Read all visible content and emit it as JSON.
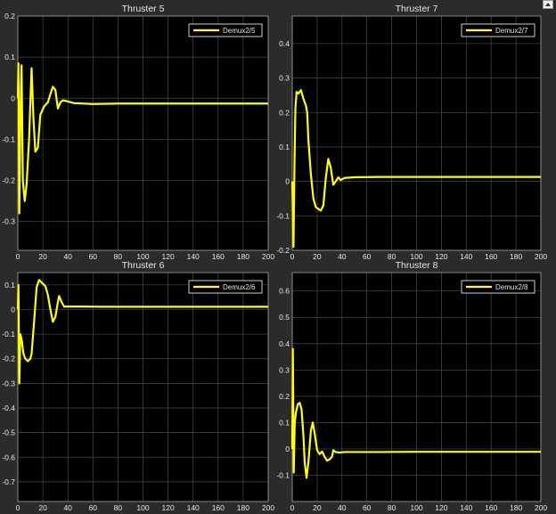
{
  "window": {
    "undock_icon": "undock-arrow-icon"
  },
  "colors": {
    "background": "#2b2b2b",
    "axes_background": "#000000",
    "grid": "#4a4a4a",
    "axis_line": "#a0a0a0",
    "text": "#e6e6e6",
    "series": "#ffff00",
    "legend_bg": "#000000",
    "legend_border": "#ffffff"
  },
  "chart_data": [
    {
      "type": "line",
      "title": "Thruster 5",
      "xlabel": "",
      "ylabel": "",
      "xlim": [
        0,
        200
      ],
      "ylim": [
        -0.37,
        0.2
      ],
      "xticks": [
        0,
        20,
        40,
        60,
        80,
        100,
        120,
        140,
        160,
        180,
        200
      ],
      "yticks": [
        -0.3,
        -0.2,
        -0.1,
        0,
        0.1,
        0.2
      ],
      "grid": true,
      "legend": "top-right",
      "series": [
        {
          "name": "Demux2/5",
          "color": "#ffff00",
          "points": [
            [
              0,
              0.0
            ],
            [
              0.5,
              0.085
            ],
            [
              1.2,
              -0.28
            ],
            [
              2,
              -0.05
            ],
            [
              3,
              0.08
            ],
            [
              4,
              -0.2
            ],
            [
              5.5,
              -0.25
            ],
            [
              7,
              -0.21
            ],
            [
              9,
              -0.1
            ],
            [
              11,
              0.073
            ],
            [
              12.5,
              -0.05
            ],
            [
              14,
              -0.13
            ],
            [
              16,
              -0.12
            ],
            [
              18,
              -0.04
            ],
            [
              21,
              -0.02
            ],
            [
              24,
              -0.01
            ],
            [
              26,
              0.01
            ],
            [
              28,
              0.028
            ],
            [
              30,
              0.02
            ],
            [
              32,
              -0.025
            ],
            [
              34,
              -0.01
            ],
            [
              36,
              -0.005
            ],
            [
              39,
              -0.007
            ],
            [
              45,
              -0.012
            ],
            [
              60,
              -0.014
            ],
            [
              80,
              -0.013
            ],
            [
              120,
              -0.013
            ],
            [
              160,
              -0.013
            ],
            [
              200,
              -0.013
            ]
          ]
        }
      ]
    },
    {
      "type": "line",
      "title": "Thruster 7",
      "xlabel": "",
      "ylabel": "",
      "xlim": [
        0,
        200
      ],
      "ylim": [
        -0.2,
        0.48
      ],
      "xticks": [
        0,
        20,
        40,
        60,
        80,
        100,
        120,
        140,
        160,
        180,
        200
      ],
      "yticks": [
        -0.2,
        -0.1,
        0,
        0.1,
        0.2,
        0.3,
        0.4
      ],
      "grid": true,
      "legend": "top-right",
      "series": [
        {
          "name": "Demux2/7",
          "color": "#ffff00",
          "points": [
            [
              0,
              0.0
            ],
            [
              0.5,
              -0.1
            ],
            [
              1,
              -0.19
            ],
            [
              1.8,
              0.05
            ],
            [
              2.5,
              0.21
            ],
            [
              3.5,
              0.26
            ],
            [
              5,
              0.255
            ],
            [
              7,
              0.265
            ],
            [
              9,
              0.24
            ],
            [
              11,
              0.22
            ],
            [
              12,
              0.2
            ],
            [
              13,
              0.12
            ],
            [
              15,
              0.02
            ],
            [
              17,
              -0.05
            ],
            [
              19,
              -0.075
            ],
            [
              21,
              -0.08
            ],
            [
              23,
              -0.085
            ],
            [
              25,
              -0.07
            ],
            [
              27,
              0.01
            ],
            [
              29,
              0.065
            ],
            [
              31,
              0.04
            ],
            [
              33,
              -0.01
            ],
            [
              35,
              0.0
            ],
            [
              37,
              0.012
            ],
            [
              39,
              0.004
            ],
            [
              42,
              0.01
            ],
            [
              50,
              0.012
            ],
            [
              70,
              0.013
            ],
            [
              100,
              0.013
            ],
            [
              150,
              0.013
            ],
            [
              200,
              0.013
            ]
          ]
        }
      ]
    },
    {
      "type": "line",
      "title": "Thruster 6",
      "xlabel": "",
      "ylabel": "",
      "xlim": [
        0,
        200
      ],
      "ylim": [
        -0.78,
        0.15
      ],
      "xticks": [
        0,
        20,
        40,
        60,
        80,
        100,
        120,
        140,
        160,
        180,
        200
      ],
      "yticks": [
        -0.7,
        -0.6,
        -0.5,
        -0.4,
        -0.3,
        -0.2,
        -0.1,
        0,
        0.1
      ],
      "grid": true,
      "legend": "top-right",
      "series": [
        {
          "name": "Demux2/6",
          "color": "#ffff00",
          "points": [
            [
              0,
              0.0
            ],
            [
              0.5,
              0.1
            ],
            [
              1.2,
              -0.3
            ],
            [
              2,
              -0.1
            ],
            [
              3,
              -0.12
            ],
            [
              4.5,
              -0.18
            ],
            [
              6,
              -0.2
            ],
            [
              8,
              -0.21
            ],
            [
              10,
              -0.2
            ],
            [
              11,
              -0.18
            ],
            [
              13,
              -0.05
            ],
            [
              15,
              0.09
            ],
            [
              17,
              0.12
            ],
            [
              19,
              0.11
            ],
            [
              22,
              0.095
            ],
            [
              24,
              0.06
            ],
            [
              26,
              0.0
            ],
            [
              28,
              -0.05
            ],
            [
              30,
              -0.03
            ],
            [
              32,
              0.03
            ],
            [
              33,
              0.055
            ],
            [
              35,
              0.03
            ],
            [
              37,
              0.012
            ],
            [
              40,
              0.012
            ],
            [
              50,
              0.012
            ],
            [
              70,
              0.011
            ],
            [
              100,
              0.011
            ],
            [
              150,
              0.011
            ],
            [
              200,
              0.011
            ]
          ]
        }
      ]
    },
    {
      "type": "line",
      "title": "Thruster 8",
      "xlabel": "",
      "ylabel": "",
      "xlim": [
        0,
        200
      ],
      "ylim": [
        -0.2,
        0.67
      ],
      "xticks": [
        0,
        20,
        40,
        60,
        80,
        100,
        120,
        140,
        160,
        180,
        200
      ],
      "yticks": [
        -0.1,
        0,
        0.1,
        0.2,
        0.3,
        0.4,
        0.5,
        0.6
      ],
      "grid": true,
      "legend": "top-right",
      "series": [
        {
          "name": "Demux2/8",
          "color": "#ffff00",
          "points": [
            [
              0,
              0.0
            ],
            [
              0.5,
              0.38
            ],
            [
              1.2,
              -0.09
            ],
            [
              2,
              0.1
            ],
            [
              3,
              0.14
            ],
            [
              4.5,
              0.17
            ],
            [
              6,
              0.175
            ],
            [
              7.5,
              0.15
            ],
            [
              9,
              0.05
            ],
            [
              10,
              -0.05
            ],
            [
              11.5,
              -0.11
            ],
            [
              13,
              -0.05
            ],
            [
              15,
              0.07
            ],
            [
              16.5,
              0.1
            ],
            [
              18,
              0.06
            ],
            [
              20,
              -0.005
            ],
            [
              22,
              -0.02
            ],
            [
              24,
              -0.01
            ],
            [
              26,
              -0.03
            ],
            [
              28,
              -0.045
            ],
            [
              30,
              -0.04
            ],
            [
              32,
              -0.03
            ],
            [
              33,
              -0.005
            ],
            [
              35,
              -0.012
            ],
            [
              38,
              -0.014
            ],
            [
              42,
              -0.012
            ],
            [
              50,
              -0.012
            ],
            [
              70,
              -0.012
            ],
            [
              100,
              -0.011
            ],
            [
              150,
              -0.011
            ],
            [
              200,
              -0.011
            ]
          ]
        }
      ]
    }
  ]
}
